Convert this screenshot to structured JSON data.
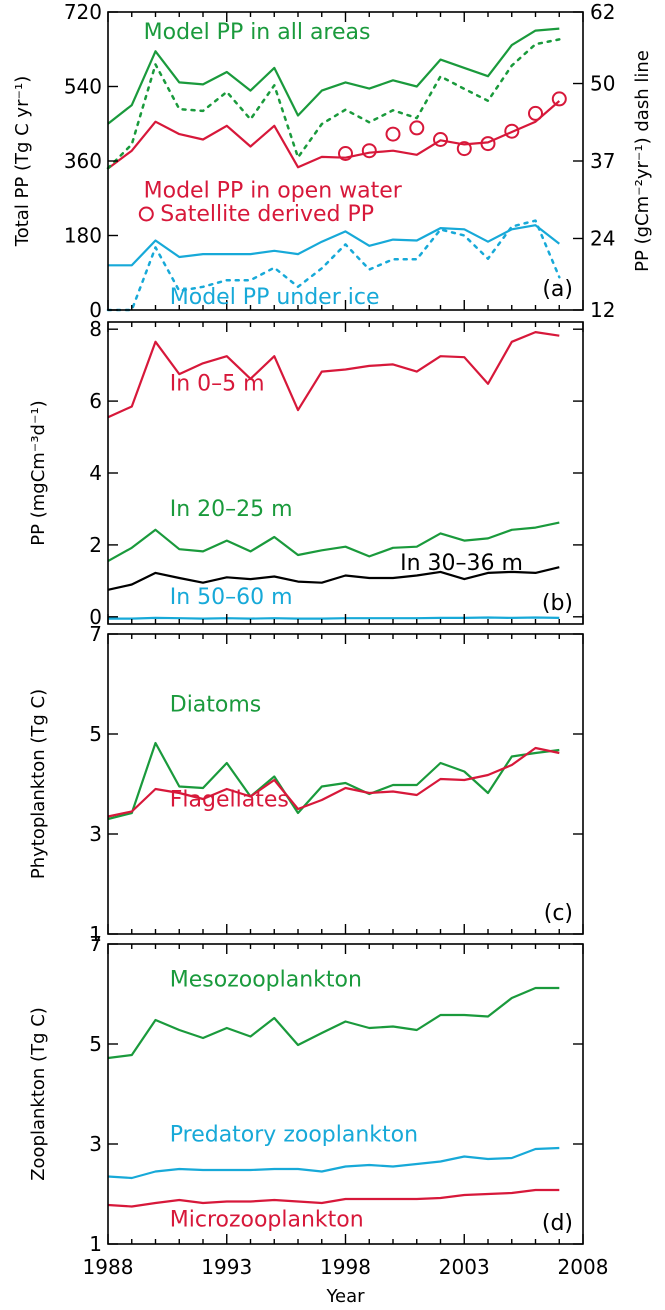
{
  "colors": {
    "green": "#1a9a3c",
    "red": "#d7183a",
    "cyan": "#17a9d8",
    "black": "#000000"
  },
  "x_axis": {
    "label": "Year",
    "tick_labels": [
      "1988",
      "1993",
      "1998",
      "2003",
      "2008"
    ],
    "ticks": [
      1988,
      1993,
      1998,
      2003,
      2008
    ],
    "minor_ticks": [
      1989,
      1990,
      1991,
      1992,
      1994,
      1995,
      1996,
      1997,
      1999,
      2000,
      2001,
      2002,
      2004,
      2005,
      2006,
      2007
    ],
    "range": [
      1988,
      2008
    ]
  },
  "chart_data": [
    {
      "type": "line",
      "panel_label": "(a)",
      "ylabel": "Total PP (Tg C yr⁻¹)",
      "ylabel_right": "PP (gCm⁻²yr⁻¹) dash line",
      "ylim": [
        0,
        720
      ],
      "yticks": [
        0,
        180,
        360,
        540,
        720
      ],
      "ytick_labels": [
        "0",
        "180",
        "360",
        "540",
        "720"
      ],
      "y2lim": [
        12,
        62
      ],
      "y2ticks": [
        12,
        24,
        37,
        50,
        62
      ],
      "y2tick_labels": [
        "12",
        "24",
        "37",
        "50",
        "62"
      ],
      "x": [
        1988,
        1989,
        1990,
        1991,
        1992,
        1993,
        1994,
        1995,
        1996,
        1997,
        1998,
        1999,
        2000,
        2001,
        2002,
        2003,
        2004,
        2005,
        2006,
        2007
      ],
      "series": [
        {
          "name": "Model PP in all areas",
          "color": "green",
          "style": "solid",
          "axis": "left",
          "values": [
            450,
            495,
            625,
            550,
            545,
            575,
            530,
            585,
            470,
            530,
            550,
            535,
            555,
            540,
            605,
            585,
            565,
            640,
            675,
            680
          ]
        },
        {
          "name": "Model PP in open water",
          "color": "red",
          "style": "solid",
          "axis": "left",
          "values": [
            342,
            385,
            455,
            425,
            412,
            445,
            395,
            445,
            345,
            370,
            368,
            380,
            385,
            375,
            410,
            400,
            405,
            430,
            455,
            505
          ]
        },
        {
          "name": "Model PP under ice",
          "color": "cyan",
          "style": "solid",
          "axis": "left",
          "values": [
            108,
            108,
            168,
            128,
            135,
            135,
            135,
            143,
            135,
            165,
            190,
            155,
            170,
            168,
            198,
            195,
            165,
            195,
            205,
            160
          ]
        },
        {
          "name": "",
          "color": "green",
          "style": "dotted",
          "axis": "right",
          "values": [
            35.8,
            39.8,
            53.2,
            45.7,
            45.4,
            48.6,
            44.0,
            49.7,
            37.6,
            43.2,
            45.6,
            43.5,
            45.5,
            44.2,
            51.2,
            49.1,
            47.1,
            53.0,
            56.6,
            57.4
          ]
        },
        {
          "name": "",
          "color": "cyan",
          "style": "dotted",
          "axis": "right",
          "values": [
            12.0,
            12.0,
            22.5,
            15.2,
            15.9,
            17.0,
            17.0,
            19.1,
            15.9,
            19.0,
            23.0,
            18.8,
            20.5,
            20.5,
            25.5,
            24.5,
            20.6,
            26.0,
            27.0,
            17.5
          ]
        },
        {
          "name": "Satellite derived PP",
          "color": "red",
          "style": "circles",
          "axis": "left",
          "x": [
            1998,
            1999,
            2000,
            2001,
            2002,
            2003,
            2004,
            2005,
            2006,
            2007
          ],
          "values": [
            378,
            385,
            425,
            440,
            412,
            390,
            402,
            432,
            475,
            510
          ]
        }
      ],
      "annotations": [
        {
          "text": "Model PP in all areas",
          "color": "green",
          "x": 1989.5,
          "y": 655
        },
        {
          "text": "Model PP in open water",
          "color": "red",
          "x": 1989.5,
          "y": 272
        },
        {
          "text": "Satellite derived PP",
          "color": "red",
          "x": 1990.2,
          "y": 215,
          "marker": "circle"
        },
        {
          "text": "Model PP under ice",
          "color": "cyan",
          "x": 1990.6,
          "y": 15
        }
      ]
    },
    {
      "type": "line",
      "panel_label": "(b)",
      "ylabel": "PP (mgCm⁻³d⁻¹)",
      "ylim": [
        -0.2,
        8.2
      ],
      "yticks": [
        0,
        2,
        4,
        6,
        8
      ],
      "ytick_labels": [
        "0",
        "2",
        "4",
        "6",
        "8"
      ],
      "x": [
        1988,
        1989,
        1990,
        1991,
        1992,
        1993,
        1994,
        1995,
        1996,
        1997,
        1998,
        1999,
        2000,
        2001,
        2002,
        2003,
        2004,
        2005,
        2006,
        2007
      ],
      "series": [
        {
          "name": "In 0–5 m",
          "color": "red",
          "style": "solid",
          "values": [
            5.55,
            5.85,
            7.65,
            6.75,
            7.05,
            7.25,
            6.62,
            7.25,
            5.75,
            6.82,
            6.88,
            6.98,
            7.02,
            6.82,
            7.25,
            7.22,
            6.48,
            7.65,
            7.92,
            7.82
          ]
        },
        {
          "name": "In 20–25 m",
          "color": "green",
          "style": "solid",
          "values": [
            1.55,
            1.92,
            2.42,
            1.88,
            1.82,
            2.12,
            1.82,
            2.22,
            1.72,
            1.85,
            1.95,
            1.68,
            1.92,
            1.95,
            2.32,
            2.12,
            2.18,
            2.42,
            2.48,
            2.62
          ]
        },
        {
          "name": "In 30–36 m",
          "color": "black",
          "style": "solid",
          "values": [
            0.75,
            0.9,
            1.22,
            1.08,
            0.95,
            1.1,
            1.05,
            1.12,
            0.98,
            0.95,
            1.15,
            1.08,
            1.08,
            1.15,
            1.25,
            1.05,
            1.22,
            1.25,
            1.22,
            1.38
          ]
        },
        {
          "name": "In 50–60 m",
          "color": "cyan",
          "style": "solid",
          "values": [
            -0.05,
            -0.05,
            -0.03,
            -0.04,
            -0.05,
            -0.04,
            -0.05,
            -0.04,
            -0.05,
            -0.05,
            -0.04,
            -0.04,
            -0.04,
            -0.04,
            -0.03,
            -0.03,
            -0.02,
            -0.03,
            -0.02,
            -0.03
          ]
        }
      ],
      "annotations": [
        {
          "text": "In 0–5 m",
          "color": "red",
          "x": 1990.6,
          "y": 6.3
        },
        {
          "text": "In 20–25 m",
          "color": "green",
          "x": 1990.6,
          "y": 2.8
        },
        {
          "text": "In 30–36 m",
          "color": "black",
          "x": 2000.3,
          "y": 1.3
        },
        {
          "text": "In 50–60 m",
          "color": "cyan",
          "x": 1990.6,
          "y": 0.35
        }
      ]
    },
    {
      "type": "line",
      "panel_label": "(c)",
      "ylabel": "Phytoplankton (Tg C)",
      "ylim": [
        1,
        7
      ],
      "yticks": [
        1,
        3,
        5,
        7
      ],
      "ytick_labels": [
        "1",
        "3",
        "5",
        "7"
      ],
      "x": [
        1988,
        1989,
        1990,
        1991,
        1992,
        1993,
        1994,
        1995,
        1996,
        1997,
        1998,
        1999,
        2000,
        2001,
        2002,
        2003,
        2004,
        2005,
        2006,
        2007
      ],
      "series": [
        {
          "name": "Diatoms",
          "color": "green",
          "style": "solid",
          "values": [
            3.3,
            3.42,
            4.82,
            3.95,
            3.92,
            4.42,
            3.75,
            4.15,
            3.42,
            3.95,
            4.02,
            3.8,
            3.98,
            3.98,
            4.42,
            4.25,
            3.82,
            4.55,
            4.62,
            4.68
          ]
        },
        {
          "name": "Flagellates",
          "color": "red",
          "style": "solid",
          "values": [
            3.35,
            3.45,
            3.9,
            3.82,
            3.7,
            3.9,
            3.75,
            4.08,
            3.5,
            3.68,
            3.92,
            3.82,
            3.85,
            3.78,
            4.1,
            4.08,
            4.18,
            4.38,
            4.72,
            4.62
          ]
        }
      ],
      "annotations": [
        {
          "text": "Diatoms",
          "color": "green",
          "x": 1990.6,
          "y": 5.45
        },
        {
          "text": "Flagellates",
          "color": "red",
          "x": 1990.6,
          "y": 3.55
        }
      ]
    },
    {
      "type": "line",
      "panel_label": "(d)",
      "ylabel": "Zooplankton (Tg C)",
      "ylim": [
        1,
        7
      ],
      "yticks": [
        1,
        3,
        5,
        7
      ],
      "ytick_labels": [
        "1",
        "3",
        "5",
        "7"
      ],
      "x": [
        1988,
        1989,
        1990,
        1991,
        1992,
        1993,
        1994,
        1995,
        1996,
        1997,
        1998,
        1999,
        2000,
        2001,
        2002,
        2003,
        2004,
        2005,
        2006,
        2007
      ],
      "series": [
        {
          "name": "Mesozooplankton",
          "color": "green",
          "style": "solid",
          "values": [
            4.72,
            4.78,
            5.48,
            5.28,
            5.12,
            5.32,
            5.15,
            5.52,
            4.98,
            5.22,
            5.45,
            5.32,
            5.35,
            5.28,
            5.58,
            5.58,
            5.55,
            5.92,
            6.12,
            6.12
          ]
        },
        {
          "name": "Predatory zooplankton",
          "color": "cyan",
          "style": "solid",
          "values": [
            2.35,
            2.32,
            2.45,
            2.5,
            2.48,
            2.48,
            2.48,
            2.5,
            2.5,
            2.45,
            2.55,
            2.58,
            2.55,
            2.6,
            2.65,
            2.75,
            2.7,
            2.72,
            2.9,
            2.92
          ]
        },
        {
          "name": "Microzooplankton",
          "color": "red",
          "style": "solid",
          "values": [
            1.78,
            1.75,
            1.82,
            1.88,
            1.82,
            1.85,
            1.85,
            1.88,
            1.85,
            1.82,
            1.9,
            1.9,
            1.9,
            1.9,
            1.92,
            1.98,
            2.0,
            2.02,
            2.08,
            2.08
          ]
        }
      ],
      "annotations": [
        {
          "text": "Mesozooplankton",
          "color": "green",
          "x": 1990.6,
          "y": 6.15
        },
        {
          "text": "Predatory zooplankton",
          "color": "cyan",
          "x": 1990.6,
          "y": 3.05
        },
        {
          "text": "Microzooplankton",
          "color": "red",
          "x": 1990.6,
          "y": 1.35
        }
      ]
    }
  ]
}
